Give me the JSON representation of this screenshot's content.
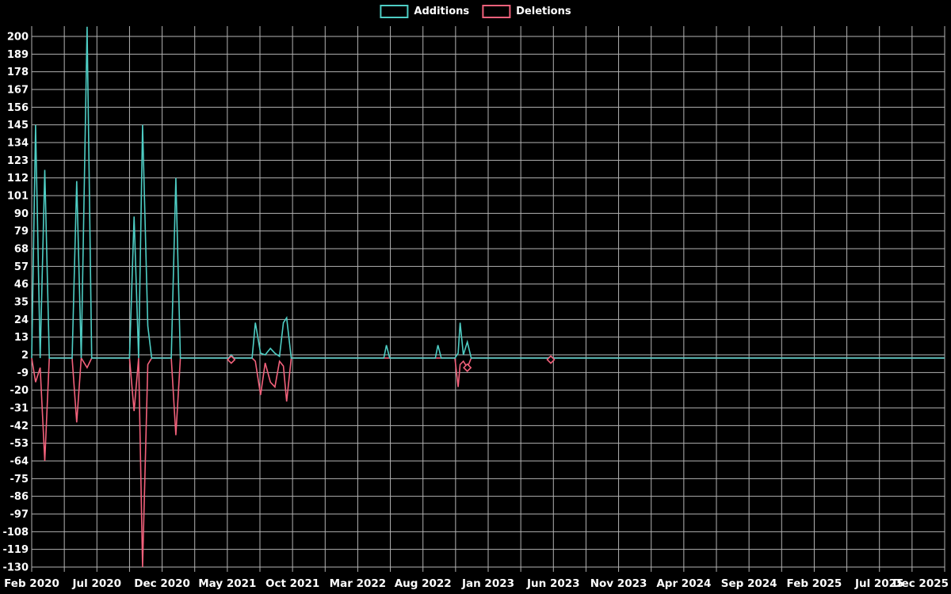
{
  "page": {
    "background": "#000000",
    "text_color": "#ffffff",
    "grid_color": "#b3b3b3"
  },
  "legend": {
    "items": [
      {
        "label": "Additions",
        "color": "#4ecdc4"
      },
      {
        "label": "Deletions",
        "color": "#f2617b"
      }
    ]
  },
  "chart_data": {
    "type": "line",
    "title": "",
    "xlabel": "",
    "ylabel": "",
    "x_axis": {
      "unit": "months since Feb 2020",
      "range": [
        0,
        70
      ],
      "tick_positions": [
        0,
        5,
        10,
        15,
        20,
        25,
        30,
        35,
        40,
        45,
        50,
        55,
        60,
        65,
        70
      ],
      "tick_labels": [
        "Feb 2020",
        "Jul 2020",
        "Dec 2020",
        "May 2021",
        "Oct 2021",
        "Mar 2022",
        "Aug 2022",
        "Jan 2023",
        "Jun 2023",
        "Nov 2023",
        "Apr 2024",
        "Sep 2024",
        "Feb 2025",
        "Jul 2025",
        "Dec 2025"
      ],
      "grid_step": 2.5
    },
    "y_axis": {
      "range": [
        -130,
        200
      ],
      "tick_step": 11,
      "ticks": [
        200,
        189,
        178,
        167,
        156,
        145,
        134,
        123,
        112,
        101,
        90,
        79,
        68,
        57,
        46,
        35,
        24,
        13,
        2,
        -9,
        -20,
        -31,
        -42,
        -53,
        -64,
        -75,
        -86,
        -97,
        -108,
        -119,
        -130
      ]
    },
    "series": [
      {
        "name": "Additions",
        "color": "#4ecdc4"
      },
      {
        "name": "Deletions",
        "color": "#f2617b"
      }
    ],
    "points_t_additions_deletions": [
      [
        0,
        0,
        0
      ],
      [
        0.3,
        145,
        -15
      ],
      [
        0.65,
        0,
        -6
      ],
      [
        1.0,
        117,
        -64
      ],
      [
        1.35,
        0,
        0
      ],
      [
        3.1,
        0,
        0
      ],
      [
        3.45,
        110,
        -40
      ],
      [
        3.8,
        0,
        0
      ],
      [
        4.25,
        206,
        -6
      ],
      [
        4.6,
        0,
        0
      ],
      [
        7.5,
        0,
        0
      ],
      [
        7.85,
        88,
        -33
      ],
      [
        8.2,
        0,
        0
      ],
      [
        8.5,
        145,
        -130
      ],
      [
        8.9,
        20,
        -4
      ],
      [
        9.2,
        0,
        0
      ],
      [
        10.7,
        0,
        0
      ],
      [
        11.05,
        112,
        -48
      ],
      [
        11.4,
        0,
        0
      ],
      [
        15.1,
        0,
        0
      ],
      [
        15.3,
        2,
        -1
      ],
      [
        15.5,
        0,
        0
      ],
      [
        16.9,
        0,
        0
      ],
      [
        17.15,
        22,
        -2
      ],
      [
        17.55,
        3,
        -23
      ],
      [
        17.9,
        2,
        -3
      ],
      [
        18.3,
        6,
        -15
      ],
      [
        18.65,
        3,
        -18
      ],
      [
        19.0,
        1,
        -2
      ],
      [
        19.3,
        22,
        -5
      ],
      [
        19.55,
        25,
        -27
      ],
      [
        19.9,
        0,
        0
      ],
      [
        27.0,
        0,
        0
      ],
      [
        27.2,
        8,
        0
      ],
      [
        27.45,
        0,
        0
      ],
      [
        30.95,
        0,
        0
      ],
      [
        31.15,
        8,
        0
      ],
      [
        31.4,
        0,
        0
      ],
      [
        32.45,
        0,
        0
      ],
      [
        32.7,
        3,
        -18
      ],
      [
        32.85,
        22,
        -4
      ],
      [
        33.1,
        2,
        -2
      ],
      [
        33.4,
        10,
        -6
      ],
      [
        33.7,
        0,
        0
      ],
      [
        39.6,
        0,
        0
      ],
      [
        39.8,
        1,
        -1
      ],
      [
        40.0,
        0,
        0
      ],
      [
        70,
        0,
        0
      ]
    ],
    "markers": [
      {
        "series": "Deletions",
        "t": 15.3,
        "value": -1
      },
      {
        "series": "Deletions",
        "t": 33.4,
        "value": -6
      },
      {
        "series": "Deletions",
        "t": 39.8,
        "value": -1
      }
    ]
  }
}
